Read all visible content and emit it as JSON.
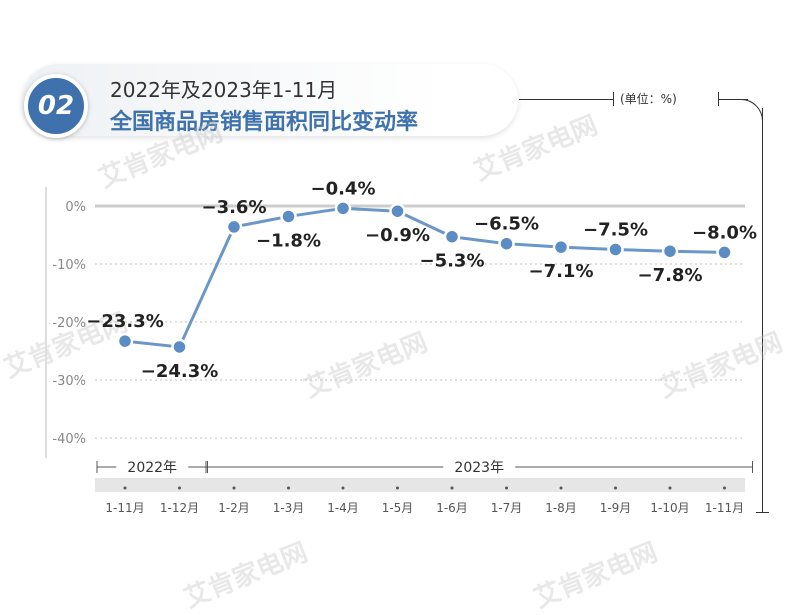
{
  "header": {
    "badge": "02",
    "title_line1": "2022年及2023年1-11月",
    "title_line2": "全国商品房销售面积同比变动率",
    "unit": "(单位：%)"
  },
  "watermark": "艾肯家电网",
  "colors": {
    "accent": "#3f72ad",
    "line": "#6a97c8",
    "marker": "#5b8cc4",
    "zero_line": "#cccccc",
    "grid": "#d6d6d6",
    "year_band": "#e6e6e6"
  },
  "chart_data": {
    "type": "line",
    "title": "全国商品房销售面积同比变动率",
    "categories": [
      "1-11月",
      "1-12月",
      "1-2月",
      "1-3月",
      "1-4月",
      "1-5月",
      "1-6月",
      "1-7月",
      "1-8月",
      "1-9月",
      "1-10月",
      "1-11月"
    ],
    "values": [
      -23.3,
      -24.3,
      -3.6,
      -1.8,
      -0.4,
      -0.9,
      -5.3,
      -6.5,
      -7.1,
      -7.5,
      -7.8,
      -8.0
    ],
    "labels": [
      "−23.3%",
      "−24.3%",
      "−3.6%",
      "−1.8%",
      "−0.4%",
      "−0.9%",
      "−5.3%",
      "−6.5%",
      "−7.1%",
      "−7.5%",
      "−7.8%",
      "−8.0%"
    ],
    "label_positions": [
      "above",
      "below",
      "above",
      "below",
      "above",
      "below",
      "below",
      "above",
      "below",
      "above",
      "below",
      "above"
    ],
    "yticks": [
      0,
      -10,
      -20,
      -30,
      -40
    ],
    "ytick_labels": [
      "0%",
      "-10%",
      "-20%",
      "-30%",
      "-40%"
    ],
    "ylim": [
      -40,
      0
    ],
    "year_groups": [
      {
        "label": "2022年",
        "start": 0,
        "end": 1
      },
      {
        "label": "2023年",
        "start": 2,
        "end": 11
      }
    ],
    "grid": true
  }
}
